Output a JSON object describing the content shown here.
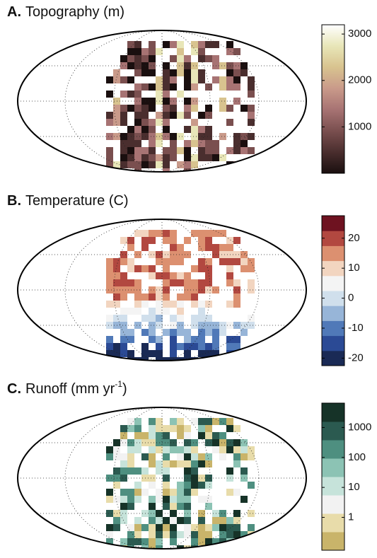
{
  "panels": [
    {
      "label": "A.",
      "title": "Topography (m)",
      "colorbar": {
        "style": "continuous",
        "log": false,
        "lim": [
          0,
          3200
        ],
        "ticks": [
          1000,
          2000,
          3000
        ],
        "colors": [
          "#1a0f0f",
          "#4a2e2e",
          "#7a4f4f",
          "#a77373",
          "#c99a8a",
          "#d8c38f",
          "#e8e6b8",
          "#ffffff"
        ]
      }
    },
    {
      "label": "B.",
      "title": "Temperature (C)",
      "colorbar": {
        "style": "discrete",
        "log": false,
        "lim": [
          -22.5,
          27.5
        ],
        "ticks": [
          -20,
          -10,
          0,
          10,
          20
        ],
        "colors": [
          "#1a2a55",
          "#2b4a95",
          "#5079b8",
          "#97b5d8",
          "#d0dfec",
          "#f4f4f4",
          "#f2d5c0",
          "#dc9070",
          "#b24840",
          "#6e1220"
        ]
      }
    },
    {
      "label": "C.",
      "title": "Runoff (mm yr",
      "title_sup": "-1",
      "title_end": ")",
      "colorbar": {
        "style": "discrete",
        "log": true,
        "lim": [
          0.08,
          6500
        ],
        "ticks": [
          1,
          10,
          100,
          1000
        ],
        "colors": [
          "#c9b46a",
          "#e8dcaa",
          "#f2f2f2",
          "#c6e3da",
          "#8cc3b4",
          "#4e8f80",
          "#2b5a50",
          "#163328"
        ]
      }
    }
  ]
}
